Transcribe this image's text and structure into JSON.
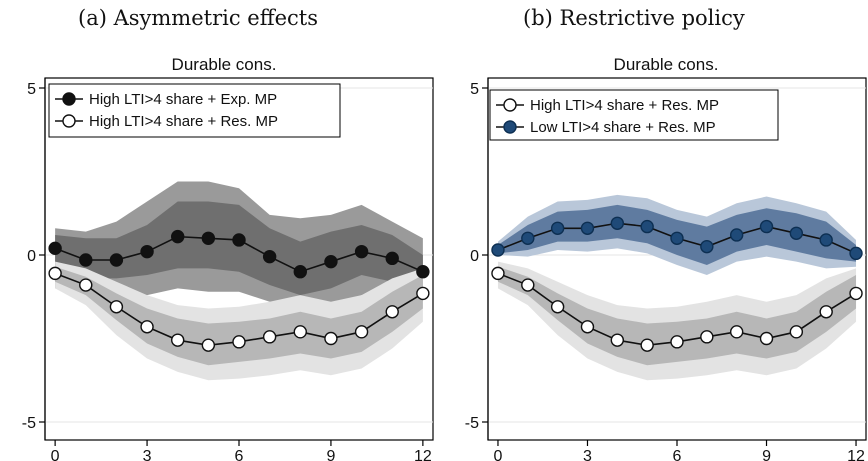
{
  "captions": {
    "a": "(a) Asymmetric effects",
    "b": "(b) Restrictive policy"
  },
  "colors": {
    "dark_band_outer": "#9a9a9a",
    "dark_band_inner": "#6f6f6f",
    "light_band_outer": "#e3e3e3",
    "light_band_inner": "#b7b7b7",
    "blue_band_outer": "#b9c7d9",
    "blue_band_inner": "#5f7ba0",
    "blue_marker": "#1f4a78",
    "line_black": "#111111"
  },
  "chart_data": [
    {
      "type": "line",
      "title": "Durable cons.",
      "x": [
        0,
        1,
        2,
        3,
        4,
        5,
        6,
        7,
        8,
        9,
        10,
        11,
        12
      ],
      "xticks": [
        0,
        3,
        6,
        9,
        12
      ],
      "yticks": [
        -5,
        0,
        5
      ],
      "ylim": [
        -5,
        5
      ],
      "xlim": [
        -0.2,
        12.2
      ],
      "grid": "horizontal",
      "legend_position": "top-left",
      "series": [
        {
          "name": "High LTI>4 share + Exp. MP",
          "marker": "filled-black",
          "values": [
            0.2,
            -0.15,
            -0.15,
            0.1,
            0.55,
            0.5,
            0.45,
            -0.05,
            -0.5,
            -0.2,
            0.1,
            -0.1,
            -0.5
          ],
          "band_inner": [
            [
              -0.5,
              0.6
            ],
            [
              -0.7,
              0.5
            ],
            [
              -0.7,
              0.5
            ],
            [
              -0.6,
              0.9
            ],
            [
              -0.4,
              1.6
            ],
            [
              -0.4,
              1.6
            ],
            [
              -0.5,
              1.5
            ],
            [
              -0.9,
              0.8
            ],
            [
              -1.2,
              0.4
            ],
            [
              -1.0,
              0.7
            ],
            [
              -0.6,
              0.9
            ],
            [
              -0.8,
              0.6
            ],
            [
              -1.0,
              0.0
            ]
          ],
          "band_outer": [
            [
              -1.0,
              0.8
            ],
            [
              -1.2,
              0.7
            ],
            [
              -1.3,
              1.0
            ],
            [
              -1.2,
              1.6
            ],
            [
              -1.0,
              2.2
            ],
            [
              -1.1,
              2.2
            ],
            [
              -1.1,
              2.0
            ],
            [
              -1.4,
              1.2
            ],
            [
              -1.7,
              1.1
            ],
            [
              -1.6,
              1.2
            ],
            [
              -1.2,
              1.5
            ],
            [
              -1.3,
              1.0
            ],
            [
              -1.3,
              0.5
            ]
          ]
        },
        {
          "name": "High LTI>4 share + Res. MP",
          "marker": "hollow",
          "values": [
            -0.55,
            -0.9,
            -1.55,
            -2.15,
            -2.55,
            -2.7,
            -2.6,
            -2.45,
            -2.3,
            -2.5,
            -2.3,
            -1.7,
            -1.15
          ],
          "band_inner": [
            [
              -0.8,
              -0.35
            ],
            [
              -1.2,
              -0.65
            ],
            [
              -1.95,
              -1.15
            ],
            [
              -2.65,
              -1.6
            ],
            [
              -3.05,
              -1.9
            ],
            [
              -3.3,
              -2.05
            ],
            [
              -3.2,
              -2.0
            ],
            [
              -3.1,
              -1.9
            ],
            [
              -2.95,
              -1.7
            ],
            [
              -3.1,
              -1.9
            ],
            [
              -2.9,
              -1.7
            ],
            [
              -2.3,
              -1.1
            ],
            [
              -1.6,
              -0.6
            ]
          ],
          "band_outer": [
            [
              -1.0,
              -0.2
            ],
            [
              -1.5,
              -0.4
            ],
            [
              -2.4,
              -0.8
            ],
            [
              -3.1,
              -1.2
            ],
            [
              -3.5,
              -1.5
            ],
            [
              -3.75,
              -1.6
            ],
            [
              -3.7,
              -1.55
            ],
            [
              -3.6,
              -1.4
            ],
            [
              -3.45,
              -1.2
            ],
            [
              -3.6,
              -1.4
            ],
            [
              -3.4,
              -1.2
            ],
            [
              -2.8,
              -0.7
            ],
            [
              -2.0,
              -0.4
            ]
          ]
        }
      ]
    },
    {
      "type": "line",
      "title": "Durable cons.",
      "x": [
        0,
        1,
        2,
        3,
        4,
        5,
        6,
        7,
        8,
        9,
        10,
        11,
        12
      ],
      "xticks": [
        0,
        3,
        6,
        9,
        12
      ],
      "yticks": [
        -5,
        0,
        5
      ],
      "ylim": [
        -5,
        5
      ],
      "xlim": [
        -0.2,
        12.2
      ],
      "grid": "horizontal",
      "legend_position": "top-left",
      "series": [
        {
          "name": "High LTI>4 share + Res. MP",
          "marker": "hollow",
          "values": [
            -0.55,
            -0.9,
            -1.55,
            -2.15,
            -2.55,
            -2.7,
            -2.6,
            -2.45,
            -2.3,
            -2.5,
            -2.3,
            -1.7,
            -1.15
          ],
          "band_inner": [
            [
              -0.8,
              -0.35
            ],
            [
              -1.2,
              -0.65
            ],
            [
              -1.95,
              -1.15
            ],
            [
              -2.65,
              -1.6
            ],
            [
              -3.05,
              -1.9
            ],
            [
              -3.3,
              -2.05
            ],
            [
              -3.2,
              -2.0
            ],
            [
              -3.1,
              -1.9
            ],
            [
              -2.95,
              -1.7
            ],
            [
              -3.1,
              -1.9
            ],
            [
              -2.9,
              -1.7
            ],
            [
              -2.3,
              -1.1
            ],
            [
              -1.6,
              -0.6
            ]
          ],
          "band_outer": [
            [
              -1.0,
              -0.2
            ],
            [
              -1.5,
              -0.4
            ],
            [
              -2.4,
              -0.8
            ],
            [
              -3.1,
              -1.2
            ],
            [
              -3.5,
              -1.5
            ],
            [
              -3.75,
              -1.6
            ],
            [
              -3.7,
              -1.55
            ],
            [
              -3.6,
              -1.4
            ],
            [
              -3.45,
              -1.2
            ],
            [
              -3.6,
              -1.4
            ],
            [
              -3.4,
              -1.2
            ],
            [
              -2.8,
              -0.7
            ],
            [
              -2.0,
              -0.4
            ]
          ]
        },
        {
          "name": "Low LTI>4 share + Res. MP",
          "marker": "filled-blue",
          "values": [
            0.15,
            0.5,
            0.8,
            0.8,
            0.95,
            0.85,
            0.5,
            0.25,
            0.6,
            0.85,
            0.65,
            0.45,
            0.05
          ],
          "band_inner": [
            [
              0.05,
              0.3
            ],
            [
              0.15,
              0.9
            ],
            [
              0.4,
              1.3
            ],
            [
              0.4,
              1.35
            ],
            [
              0.5,
              1.5
            ],
            [
              0.35,
              1.35
            ],
            [
              0.0,
              1.05
            ],
            [
              -0.3,
              0.85
            ],
            [
              0.1,
              1.2
            ],
            [
              0.3,
              1.4
            ],
            [
              0.1,
              1.25
            ],
            [
              -0.1,
              1.0
            ],
            [
              -0.2,
              0.3
            ]
          ],
          "band_outer": [
            [
              0.0,
              0.4
            ],
            [
              -0.05,
              1.15
            ],
            [
              0.15,
              1.6
            ],
            [
              0.1,
              1.65
            ],
            [
              0.2,
              1.8
            ],
            [
              0.05,
              1.7
            ],
            [
              -0.3,
              1.35
            ],
            [
              -0.6,
              1.15
            ],
            [
              -0.2,
              1.55
            ],
            [
              -0.05,
              1.75
            ],
            [
              -0.2,
              1.55
            ],
            [
              -0.4,
              1.3
            ],
            [
              -0.35,
              0.45
            ]
          ]
        }
      ]
    }
  ]
}
